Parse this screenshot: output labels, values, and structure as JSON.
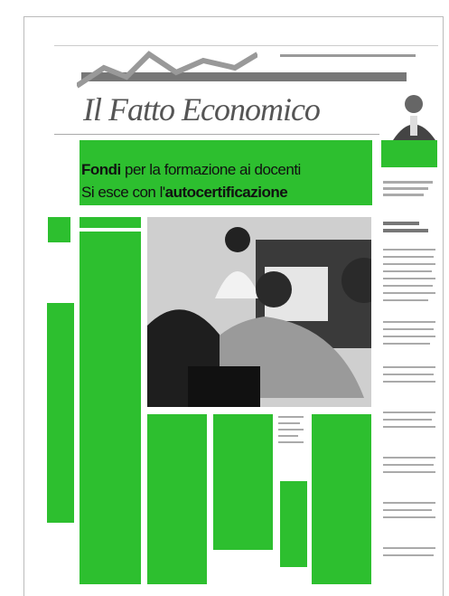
{
  "masthead": {
    "title": "Il Fatto Economico"
  },
  "headline": {
    "lead": "Fondi",
    "rest": " per la formazione ai docenti",
    "line2": "Si esce con l'",
    "emphasis": "autocertificazione"
  }
}
